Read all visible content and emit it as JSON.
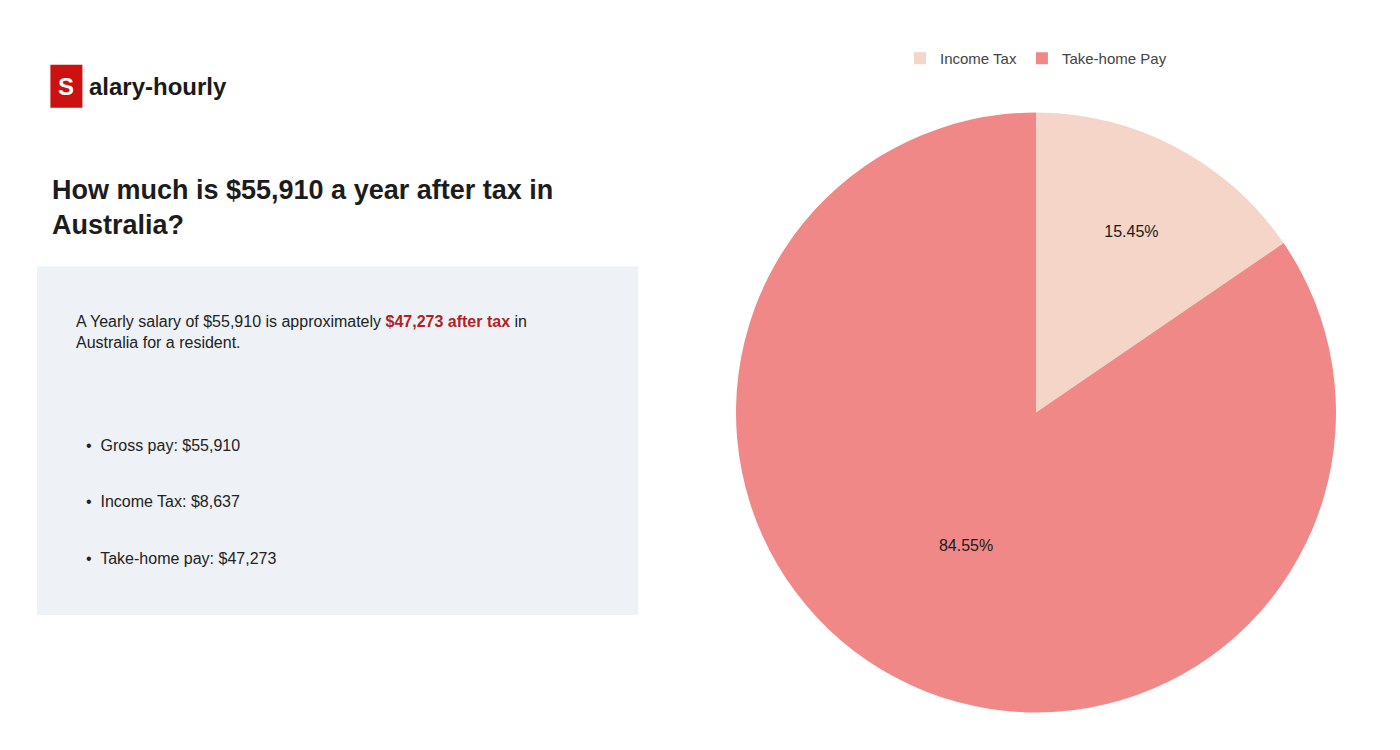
{
  "chart_data": {
    "type": "pie",
    "title": "How much is $55,910 a year after tax in\nAustralia?",
    "categories": [
      "Income Tax",
      "Take-home Pay"
    ],
    "values": [
      15.45,
      84.55
    ],
    "value_labels": [
      "15.45%",
      "84.55%"
    ],
    "colors": [
      "#f5d5c8",
      "#f08888"
    ],
    "data_labels": true,
    "legend": "top",
    "annotations": [
      {
        "text": "S",
        "color": "#cc1111"
      },
      {
        "text": "alary-hourly"
      },
      {
        "text": "A Yearly salary of $55,910 is approximately "
      },
      {
        "text": "$47,273 after tax",
        "color": "#b22222"
      },
      {
        "text": " in"
      },
      {
        "text": "Australia for a resident."
      },
      {
        "text": "•  Gross pay: $55,910"
      },
      {
        "text": "•  Income Tax: $8,637"
      },
      {
        "text": "•  Take-home pay: $47,273"
      }
    ]
  }
}
